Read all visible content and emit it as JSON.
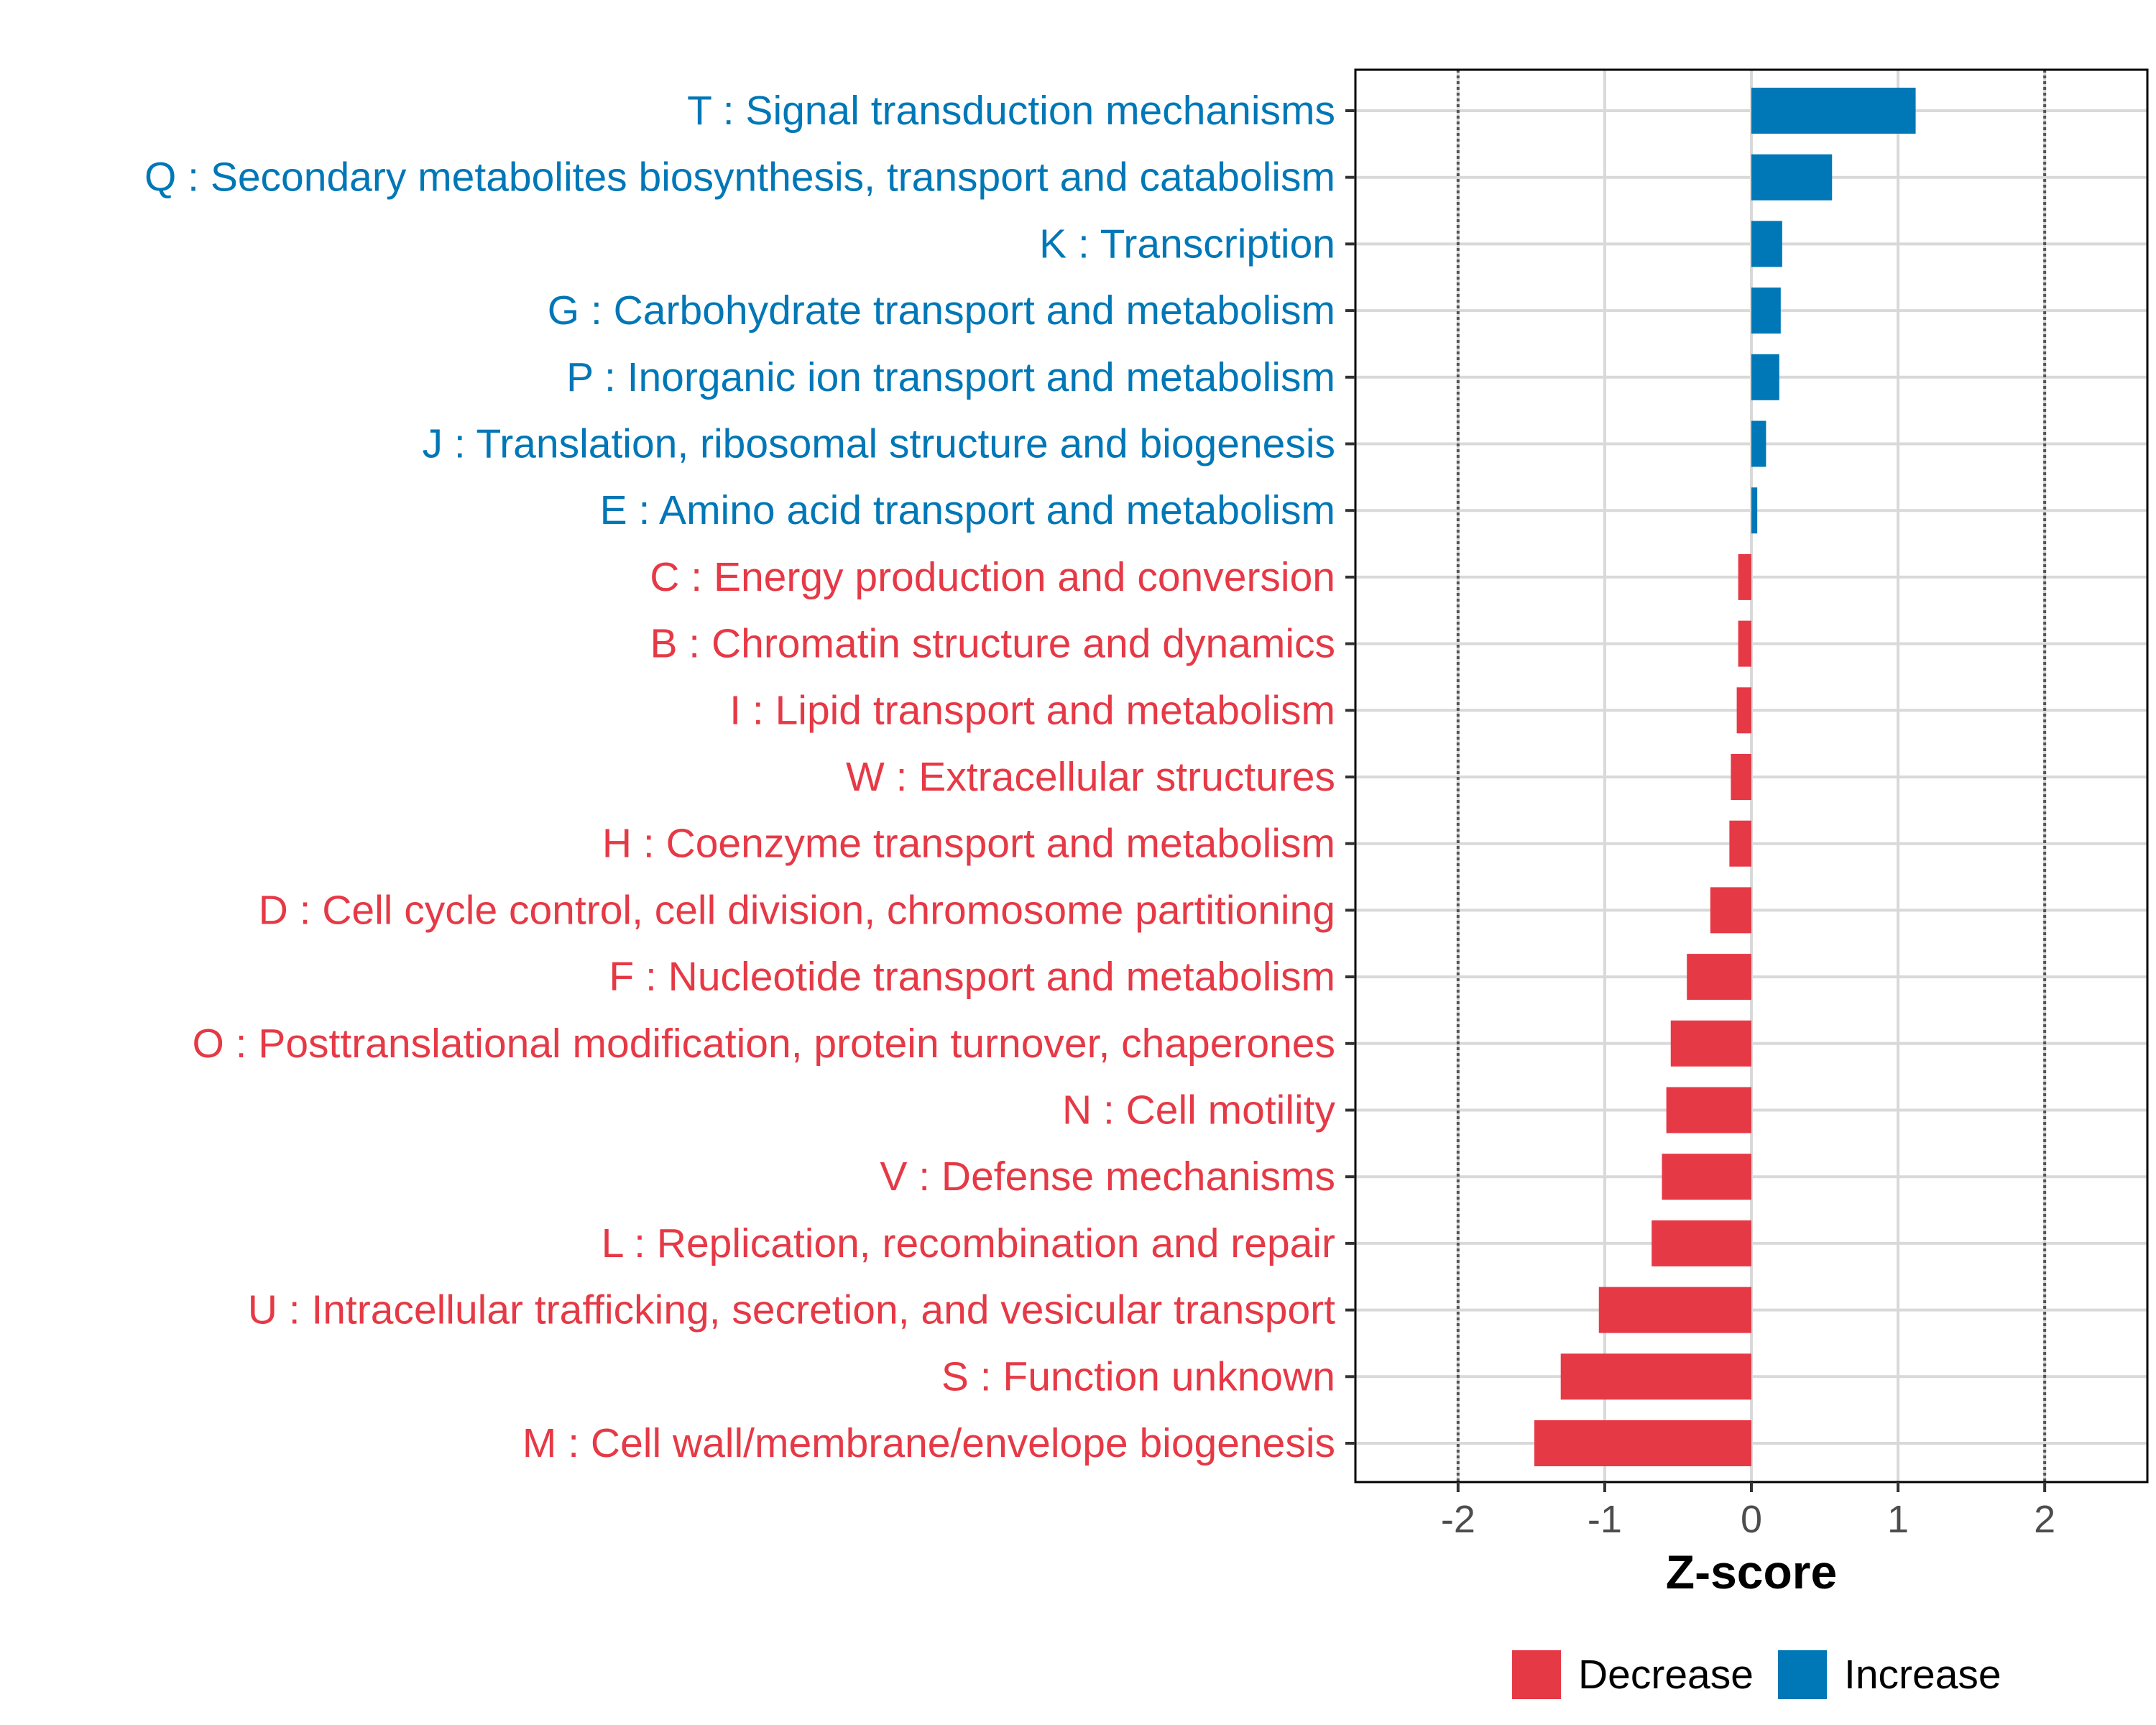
{
  "chart_data": {
    "type": "bar",
    "orientation": "horizontal",
    "title": "",
    "xlabel": "Z-score",
    "ylabel": "",
    "xlim": [
      -2.7,
      2.7
    ],
    "xticks": [
      -2,
      -1,
      0,
      1,
      2
    ],
    "xtick_labels": [
      "-2",
      "-1",
      "0",
      "1",
      "2"
    ],
    "reference_lines": [
      -2,
      2
    ],
    "grid": true,
    "categories": [
      "T : Signal transduction mechanisms",
      "Q : Secondary metabolites biosynthesis, transport and catabolism",
      "K : Transcription",
      "G : Carbohydrate transport and metabolism",
      "P : Inorganic ion transport and metabolism",
      "J : Translation, ribosomal structure and biogenesis",
      "E : Amino acid transport and metabolism",
      "C : Energy production and conversion",
      "B : Chromatin structure and dynamics",
      "I : Lipid transport and metabolism",
      "W : Extracellular structures",
      "H : Coenzyme transport and metabolism",
      "D : Cell cycle control, cell division, chromosome partitioning",
      "F : Nucleotide transport and metabolism",
      "O : Posttranslational modification, protein turnover, chaperones",
      "N : Cell motility",
      "V : Defense mechanisms",
      "L : Replication, recombination and repair",
      "U : Intracellular trafficking, secretion, and vesicular transport",
      "S : Function unknown",
      "M : Cell wall/membrane/envelope biogenesis"
    ],
    "values": [
      1.12,
      0.55,
      0.21,
      0.2,
      0.19,
      0.1,
      0.04,
      -0.09,
      -0.09,
      -0.1,
      -0.14,
      -0.15,
      -0.28,
      -0.44,
      -0.55,
      -0.58,
      -0.61,
      -0.68,
      -1.04,
      -1.3,
      -1.48
    ],
    "groups": [
      "Increase",
      "Increase",
      "Increase",
      "Increase",
      "Increase",
      "Increase",
      "Increase",
      "Decrease",
      "Decrease",
      "Decrease",
      "Decrease",
      "Decrease",
      "Decrease",
      "Decrease",
      "Decrease",
      "Decrease",
      "Decrease",
      "Decrease",
      "Decrease",
      "Decrease",
      "Decrease"
    ],
    "legend": {
      "position": "bottom-right",
      "entries": [
        {
          "label": "Decrease",
          "color": "#E63946"
        },
        {
          "label": "Increase",
          "color": "#0077B6"
        }
      ]
    },
    "colors": {
      "Decrease": "#E63946",
      "Increase": "#0077B6",
      "grid": "#d9d9d9",
      "refline": "#555555",
      "axis": "#000000",
      "tick_text": "#4d4d4d"
    }
  }
}
